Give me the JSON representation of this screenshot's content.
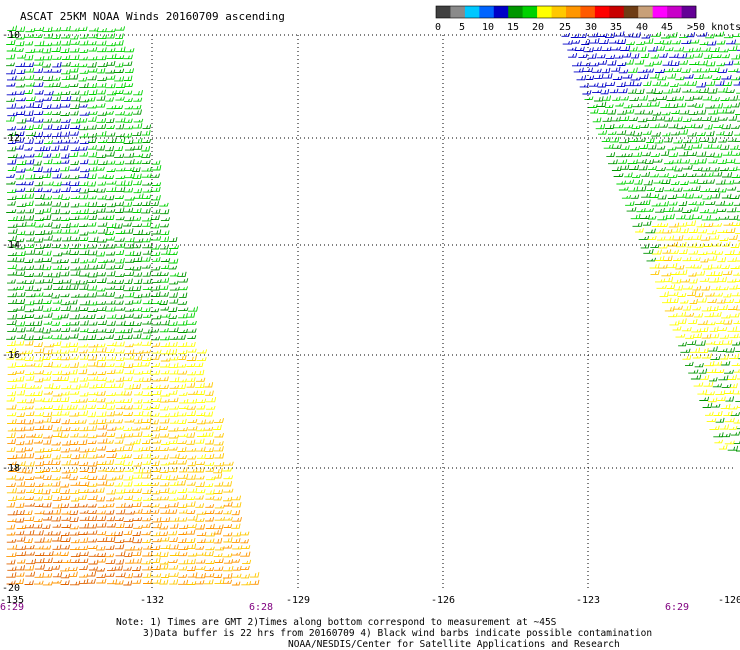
{
  "title": "ASCAT 25KM NOAA Winds 20160709 ascending",
  "legend": {
    "labels": [
      "0",
      "5",
      "10",
      "15",
      "20",
      "25",
      "30",
      "35",
      "40",
      "45",
      ">50 knots"
    ],
    "colors": [
      "#404040",
      "#8a8a8a",
      "#00c8ff",
      "#0064ff",
      "#0000c8",
      "#009600",
      "#00d200",
      "#ffff00",
      "#ffc800",
      "#ff9600",
      "#ff5a00",
      "#ff0000",
      "#c80000",
      "#6e3c14",
      "#c8a078",
      "#ff00ff",
      "#c800c8",
      "#640096"
    ]
  },
  "axes": {
    "lat_labels": [
      "-10",
      "-12",
      "-14",
      "-16",
      "-18",
      "-20"
    ],
    "lon_labels": [
      "-135",
      "-132",
      "-129",
      "-126",
      "-123",
      "-120"
    ]
  },
  "time_labels": [
    "6:29",
    "6:28",
    "6:29"
  ],
  "notes": [
    "Note: 1) Times are GMT 2)Times along bottom correspond to measurement at ~45S",
    "3)Data buffer is 22 hrs from 20160709 4) Black wind barbs indicate possible contamination",
    "NOAA/NESDIS/Center for Satellite Applications and Research"
  ],
  "wind_colors": {
    "blue": "#0000c8",
    "dark_green": "#009600",
    "green": "#00d200",
    "yellow": "#ffff00",
    "gold": "#ffc800",
    "orange": "#ff9600",
    "brown": "#e06400"
  }
}
